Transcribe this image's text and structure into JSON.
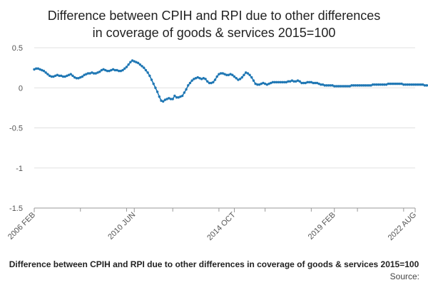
{
  "chart_data": {
    "type": "line",
    "title": "Difference between CPIH and RPI due to other differences in coverage of goods & services 2015=100",
    "xlabel": "",
    "ylabel": "",
    "x_ticks": [
      "2006 FEB",
      "2010 JUN",
      "2014 OCT",
      "2019 FEB",
      "2022 AUG"
    ],
    "y_ticks": [
      0.5,
      0,
      -0.5,
      -1,
      -1.5
    ],
    "y_tick_labels": [
      "0.5",
      "0",
      "-0.5",
      "-1",
      "-1.5"
    ],
    "ylim": [
      -1.5,
      0.5
    ],
    "xlim": [
      "2006-02",
      "2022-08"
    ],
    "grid": "horizontal",
    "legend": "none",
    "gaps": [
      "2019-09"
    ],
    "x_start": "2006-02",
    "values": [
      0.23,
      0.24,
      0.24,
      0.23,
      0.22,
      0.21,
      0.19,
      0.17,
      0.15,
      0.14,
      0.14,
      0.15,
      0.16,
      0.15,
      0.15,
      0.14,
      0.14,
      0.15,
      0.16,
      0.17,
      0.15,
      0.13,
      0.12,
      0.12,
      0.13,
      0.14,
      0.16,
      0.17,
      0.18,
      0.18,
      0.19,
      0.18,
      0.18,
      0.19,
      0.2,
      0.22,
      0.23,
      0.22,
      0.21,
      0.21,
      0.22,
      0.23,
      0.22,
      0.22,
      0.21,
      0.21,
      0.22,
      0.24,
      0.26,
      0.29,
      0.32,
      0.34,
      0.33,
      0.32,
      0.31,
      0.29,
      0.27,
      0.25,
      0.22,
      0.19,
      0.15,
      0.1,
      0.05,
      0,
      -0.05,
      -0.11,
      -0.16,
      -0.17,
      -0.15,
      -0.14,
      -0.13,
      -0.14,
      -0.14,
      -0.1,
      -0.12,
      -0.12,
      -0.11,
      -0.1,
      -0.06,
      -0.02,
      0.03,
      0.06,
      0.09,
      0.11,
      0.12,
      0.13,
      0.12,
      0.11,
      0.12,
      0.11,
      0.08,
      0.06,
      0.06,
      0.07,
      0.1,
      0.14,
      0.17,
      0.18,
      0.18,
      0.17,
      0.16,
      0.16,
      0.17,
      0.16,
      0.14,
      0.12,
      0.1,
      0.11,
      0.13,
      0.16,
      0.19,
      0.18,
      0.16,
      0.13,
      0.09,
      0.05,
      0.04,
      0.04,
      0.05,
      0.06,
      0.05,
      0.04,
      0.05,
      0.06,
      0.07,
      0.07,
      0.07,
      0.07,
      0.07,
      0.07,
      0.07,
      0.07,
      0.08,
      0.08,
      0.09,
      0.08,
      0.08,
      0.09,
      0.08,
      0.06,
      0.06,
      0.06,
      0.07,
      0.07,
      0.07,
      0.06,
      0.06,
      0.06,
      0.05,
      0.04,
      0.04,
      0.03,
      0.03,
      0.03,
      0.03,
      0.03,
      0.02,
      0.02,
      0.02,
      0.02,
      0.02,
      0.02,
      0.02,
      0.02,
      0.02,
      0.03,
      0.03,
      0.03,
      0.03,
      0.03,
      0.03,
      0.03,
      0.03,
      0.03,
      0.03,
      0.03,
      0.04,
      0.04,
      0.04,
      0.04,
      0.04,
      0.04,
      0.04,
      0.04,
      0.05,
      0.05,
      0.05,
      0.05,
      0.05,
      0.05,
      0.05,
      0.05,
      0.04,
      0.04,
      0.04,
      0.04,
      0.04,
      0.04,
      0.04,
      0.04,
      0.04,
      0.04,
      0.04,
      0.03,
      0.03,
      0.03,
      0.03,
      0.03,
      0.03,
      0.03,
      0.03,
      0.03,
      0.03,
      0.02,
      0.02,
      0.02,
      0.02,
      0.01,
      -0.01,
      -0.02,
      -0.03,
      -0.01,
      -0.01,
      -0.01,
      -0.01,
      -0.01,
      -0.01,
      -0.01,
      -0.01,
      null,
      null,
      null,
      null,
      null,
      0.04,
      0.04,
      0.04,
      0.04,
      0.04,
      0.04,
      0.03,
      0.03,
      0.03,
      0.03,
      0.03,
      0.03,
      0.03,
      0.03,
      0.02,
      0.02,
      0.02,
      0.03,
      0.03,
      0.03,
      0.03,
      0.03,
      0.03,
      0.03,
      0.03,
      0.03,
      0.03,
      0.03,
      0.03,
      0.03,
      0.04,
      0.04,
      0.04,
      0.04,
      0.03,
      0.03,
      0.03,
      0.04,
      0.04,
      0.04,
      0.04,
      0.04,
      0.04,
      0.05,
      0.05,
      0.05,
      0.06,
      0.06,
      0.06,
      0.06,
      0.06,
      0.06,
      0.06,
      0.06
    ],
    "colors": {
      "series": "#1f77b4",
      "grid": "#e0e0e0",
      "axis": "#999999",
      "tick_text": "#555555"
    }
  },
  "footer": {
    "series_label": "Difference between CPIH and RPI due to other differences in coverage of goods & services 2015=100",
    "source_label": "Source:"
  }
}
